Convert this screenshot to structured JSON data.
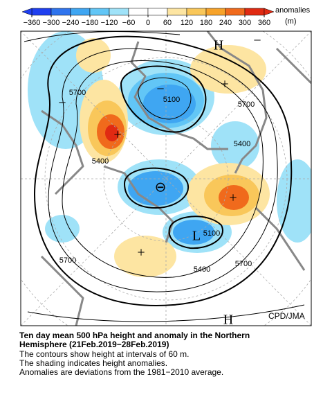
{
  "colorbar": {
    "title": "anomalies",
    "unit": "(m)",
    "ticks": [
      {
        "value": -360,
        "label": "−360"
      },
      {
        "value": -300,
        "label": "−300"
      },
      {
        "value": -240,
        "label": "−240"
      },
      {
        "value": -180,
        "label": "−180"
      },
      {
        "value": -120,
        "label": "−120"
      },
      {
        "value": -60,
        "label": "−60"
      },
      0,
      60,
      120,
      180,
      240,
      300,
      360
    ],
    "colors": [
      "#1f3ff0",
      "#2f74ee",
      "#3fa6f2",
      "#62c6f6",
      "#9fe2f8",
      "#ffffff",
      "#ffffff",
      "#fde5a2",
      "#f9c75a",
      "#f7a32a",
      "#f06a1c",
      "#e02a12"
    ]
  },
  "map": {
    "labels": [
      "5700",
      "5100",
      "5700",
      "5400",
      "5400",
      "5100",
      "5700",
      "5400",
      "5700"
    ],
    "highs": [
      "H",
      "H"
    ],
    "lows": [
      "L"
    ],
    "credit": "CPD/JMA"
  },
  "caption": {
    "title": [
      "Ten day mean 500 hPa height and anomaly in the Northern",
      "Hemisphere (21Feb.2019−28Feb.2019)"
    ],
    "notes": [
      "The contours show height at intervals of 60 m.",
      "The shading indicates height anomalies.",
      "Anomalies are deviations from the 1981−2010 average."
    ]
  }
}
